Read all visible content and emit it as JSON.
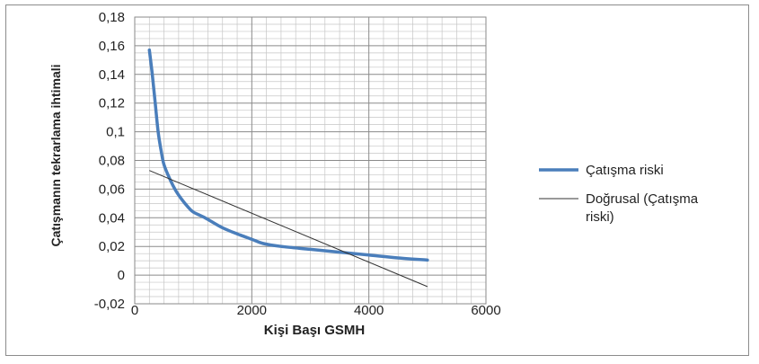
{
  "chart_data": {
    "type": "line",
    "title": "",
    "xlabel": "Kişi Başı GSMH",
    "ylabel": "Çatışmanın tekrarlama ihtimali",
    "xlim": [
      0,
      6000
    ],
    "ylim": [
      -0.02,
      0.18
    ],
    "x_ticks": [
      0,
      2000,
      4000,
      6000
    ],
    "x_tick_labels": [
      "0",
      "2000",
      "4000",
      "6000"
    ],
    "y_ticks": [
      -0.02,
      0,
      0.02,
      0.04,
      0.06,
      0.08,
      0.1,
      0.12,
      0.14,
      0.16,
      0.18
    ],
    "y_tick_labels": [
      "-0,02",
      "0",
      "0,02",
      "0,04",
      "0,06",
      "0,08",
      "0,1",
      "0,12",
      "0,14",
      "0,16",
      "0,18"
    ],
    "grid": true,
    "legend_position": "right",
    "series": [
      {
        "name": "Çatışma riski",
        "color": "#4a7ebb",
        "style": "thick-smooth",
        "x": [
          250,
          300,
          350,
          400,
          450,
          500,
          600,
          700,
          800,
          900,
          1000,
          1200,
          1500,
          1800,
          2000,
          2200,
          2500,
          3000,
          3500,
          4000,
          4500,
          5000
        ],
        "y": [
          0.157,
          0.14,
          0.12,
          0.1,
          0.087,
          0.077,
          0.067,
          0.059,
          0.053,
          0.048,
          0.044,
          0.04,
          0.033,
          0.028,
          0.025,
          0.022,
          0.02,
          0.018,
          0.016,
          0.014,
          0.012,
          0.0105
        ]
      },
      {
        "name": "Doğrusal (Çatışma riski)",
        "legend_lines": [
          "Doğrusal (Çatışma",
          "riski)"
        ],
        "color": "#333333",
        "style": "thin-straight",
        "x": [
          250,
          5000
        ],
        "y": [
          0.073,
          -0.008
        ]
      }
    ]
  }
}
